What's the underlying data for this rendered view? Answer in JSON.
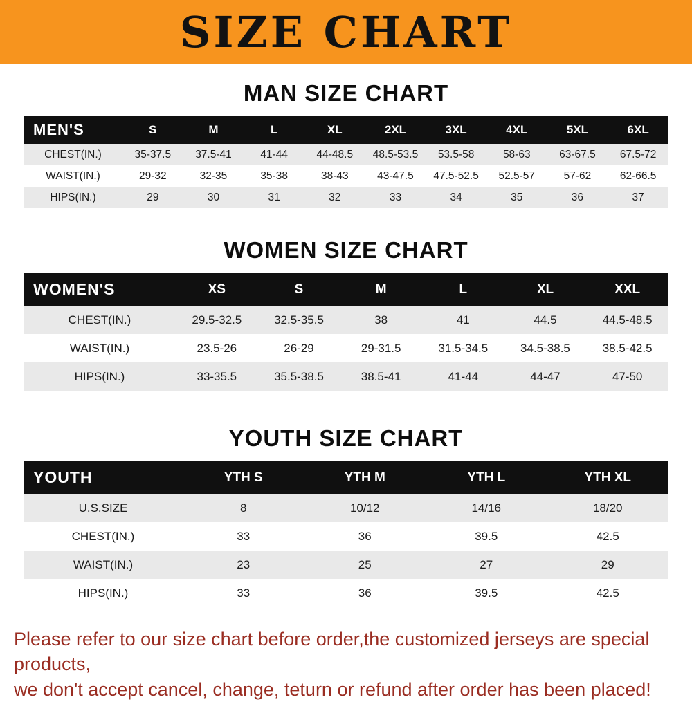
{
  "banner": {
    "title": "SIZE CHART",
    "bg_color": "#f7941e",
    "text_color": "#121212"
  },
  "sections": [
    {
      "heading": "MAN SIZE CHART",
      "table": {
        "group_label": "MEN'S",
        "columns": [
          "S",
          "M",
          "L",
          "XL",
          "2XL",
          "3XL",
          "4XL",
          "5XL",
          "6XL"
        ],
        "rows": [
          {
            "label": "CHEST(IN.)",
            "values": [
              "35-37.5",
              "37.5-41",
              "41-44",
              "44-48.5",
              "48.5-53.5",
              "53.5-58",
              "58-63",
              "63-67.5",
              "67.5-72"
            ]
          },
          {
            "label": "WAIST(IN.)",
            "values": [
              "29-32",
              "32-35",
              "35-38",
              "38-43",
              "43-47.5",
              "47.5-52.5",
              "52.5-57",
              "57-62",
              "62-66.5"
            ]
          },
          {
            "label": "HIPS(IN.)",
            "values": [
              "29",
              "30",
              "31",
              "32",
              "33",
              "34",
              "35",
              "36",
              "37"
            ]
          }
        ]
      }
    },
    {
      "heading": "WOMEN SIZE CHART",
      "table": {
        "group_label": "WOMEN'S",
        "columns": [
          "XS",
          "S",
          "M",
          "L",
          "XL",
          "XXL"
        ],
        "rows": [
          {
            "label": "CHEST(IN.)",
            "values": [
              "29.5-32.5",
              "32.5-35.5",
              "38",
              "41",
              "44.5",
              "44.5-48.5"
            ]
          },
          {
            "label": "WAIST(IN.)",
            "values": [
              "23.5-26",
              "26-29",
              "29-31.5",
              "31.5-34.5",
              "34.5-38.5",
              "38.5-42.5"
            ]
          },
          {
            "label": "HIPS(IN.)",
            "values": [
              "33-35.5",
              "35.5-38.5",
              "38.5-41",
              "41-44",
              "44-47",
              "47-50"
            ]
          }
        ]
      }
    },
    {
      "heading": "YOUTH SIZE CHART",
      "table": {
        "group_label": "YOUTH",
        "columns": [
          "YTH S",
          "YTH M",
          "YTH L",
          "YTH XL"
        ],
        "rows": [
          {
            "label": "U.S.SIZE",
            "values": [
              "8",
              "10/12",
              "14/16",
              "18/20"
            ]
          },
          {
            "label": "CHEST(IN.)",
            "values": [
              "33",
              "36",
              "39.5",
              "42.5"
            ]
          },
          {
            "label": "WAIST(IN.)",
            "values": [
              "23",
              "25",
              "27",
              "29"
            ]
          },
          {
            "label": "HIPS(IN.)",
            "values": [
              "33",
              "36",
              "39.5",
              "42.5"
            ]
          }
        ]
      }
    }
  ],
  "footer": {
    "line1": "Please refer to our size chart before order,the customized jerseys are special products,",
    "line2": "we don't accept cancel, change, teturn or refund after order has been placed!",
    "text_color": "#9a2d22"
  }
}
